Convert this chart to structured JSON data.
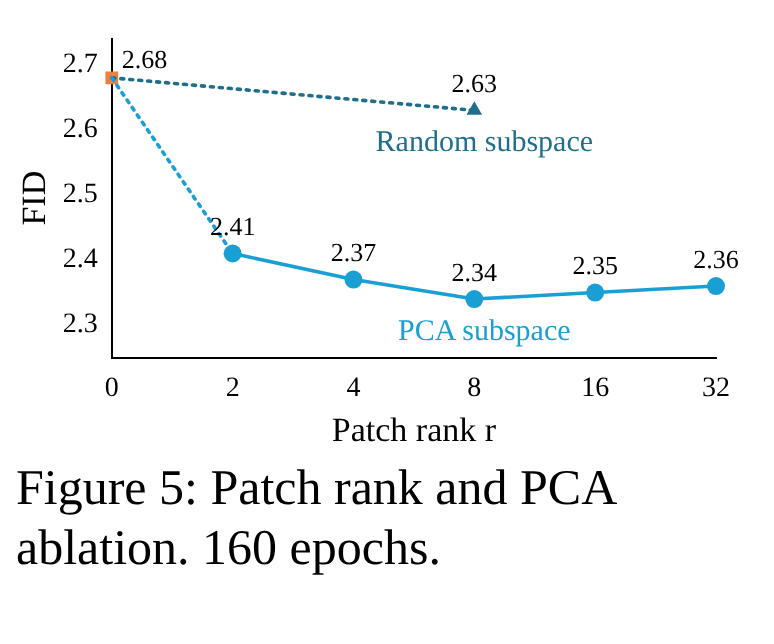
{
  "chart_data": {
    "type": "line",
    "xlabel": "Patch rank r",
    "ylabel": "FID",
    "categories": [
      "0",
      "2",
      "4",
      "8",
      "16",
      "32"
    ],
    "ylim": [
      2.25,
      2.74
    ],
    "yticks": [
      2.3,
      2.4,
      2.5,
      2.6,
      2.7
    ],
    "grid": false,
    "legend": false,
    "series": [
      {
        "color": "#1a9fd4",
        "values": [
          2.68,
          2.41,
          null,
          null,
          null,
          null
        ],
        "line_style": "dotted",
        "marker": "none"
      },
      {
        "color": "#1f6e8c",
        "values": [
          2.68,
          null,
          null,
          2.63,
          null,
          null
        ],
        "line_style": "dotted",
        "marker": "none"
      },
      {
        "name": "PCA subspace",
        "color": "#1a9fd4",
        "values": [
          null,
          2.41,
          2.37,
          2.34,
          2.35,
          2.36
        ],
        "line_style": "solid",
        "marker": "circle",
        "value_labels": [
          null,
          "2.41",
          "2.37",
          "2.34",
          "2.35",
          "2.36"
        ]
      },
      {
        "name": "Random subspace",
        "color": "#1f6e8c",
        "values": [
          null,
          null,
          null,
          2.63,
          null,
          null
        ],
        "marker": "triangle",
        "value_labels": [
          null,
          null,
          null,
          "2.63",
          null,
          null
        ]
      },
      {
        "color": "#f07f3c",
        "values": [
          2.68,
          null,
          null,
          null,
          null,
          null
        ],
        "marker": "square",
        "value_labels": [
          "2.68",
          null,
          null,
          null,
          null,
          null
        ]
      }
    ],
    "annotations": [
      "Figure 5:  Patch rank and PCA ablation. 160 epochs."
    ]
  }
}
